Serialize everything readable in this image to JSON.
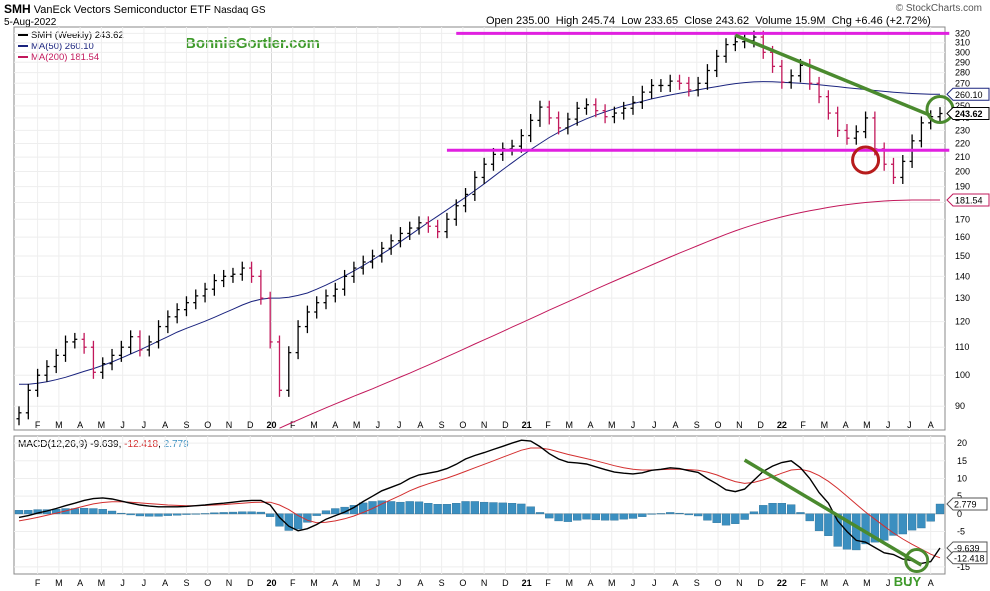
{
  "header": {
    "symbol": "SMH",
    "name": "VanEck Vectors Semiconductor ETF",
    "exchange": "Nasdaq GS",
    "date": "5-Aug-2022",
    "credit": "© StockCharts.com",
    "open_label": "Open",
    "open": "235.00",
    "high_label": "High",
    "high": "245.74",
    "low_label": "Low",
    "low": "233.65",
    "close_label": "Close",
    "close": "243.62",
    "volume_label": "Volume",
    "volume": "15.9M",
    "chg_label": "Chg",
    "chg": "+6.46 (+2.72%)",
    "watermark": "BonnieGortler.com"
  },
  "legend_price": [
    {
      "text": "SMH (Weekly) 243.62",
      "color": "#000000"
    },
    {
      "text": "MA(50) 260.10",
      "color": "#1a237e"
    },
    {
      "text": "MA(200) 181.54",
      "color": "#c2185b"
    }
  ],
  "legend_macd": {
    "label": "MACD(12,26,9)",
    "v1": "-9.639",
    "v2": "-12.418",
    "v3": "2.779",
    "c1": "#000000",
    "c2": "#d32f2f",
    "c3": "#3b8fc0"
  },
  "price_tags": [
    {
      "text": "260.10",
      "value": 260.1,
      "style": "ma50"
    },
    {
      "text": "243.62",
      "value": 243.62,
      "style": "close"
    },
    {
      "text": "181.54",
      "value": 181.54,
      "style": "ma200"
    }
  ],
  "macd_tags": [
    {
      "text": "2.779",
      "value": 2.779
    },
    {
      "text": "-9.639",
      "value": -9.639
    },
    {
      "text": "-12.418",
      "value": -12.418
    }
  ],
  "buy_label": "BUY",
  "chart_data": [
    {
      "type": "line",
      "title": "SMH (Weekly) 243.62",
      "xlabel": "",
      "ylabel": "",
      "y_scale": "log",
      "ylim": [
        83,
        327
      ],
      "yticks": [
        90,
        100,
        110,
        120,
        130,
        140,
        150,
        160,
        170,
        180,
        190,
        200,
        210,
        220,
        230,
        240,
        250,
        260,
        270,
        280,
        290,
        300,
        310,
        320
      ],
      "x_tick_labels": [
        "F",
        "M",
        "A",
        "M",
        "J",
        "J",
        "A",
        "S",
        "O",
        "N",
        "D",
        "20",
        "F",
        "M",
        "A",
        "M",
        "J",
        "J",
        "A",
        "S",
        "O",
        "N",
        "D",
        "21",
        "F",
        "M",
        "A",
        "M",
        "J",
        "J",
        "A",
        "S",
        "O",
        "N",
        "D",
        "22",
        "F",
        "M",
        "A",
        "M",
        "J",
        "J",
        "A"
      ],
      "bold_x_ticks": [
        "20",
        "21",
        "22"
      ],
      "grid": true,
      "legend_position": "top-left",
      "series": [
        {
          "name": "SMH (Weekly) 243.62",
          "color": "#000000",
          "down_color": "#c2185b",
          "values": [
            88,
            95,
            100,
            103,
            107,
            112,
            113,
            110,
            101,
            104,
            107,
            110,
            114,
            109,
            112,
            118,
            122,
            125,
            128,
            131,
            134,
            138,
            140,
            141,
            144,
            140,
            130,
            112,
            95,
            108,
            118,
            124,
            128,
            131,
            134,
            140,
            144,
            147,
            150,
            154,
            158,
            162,
            165,
            168,
            166,
            163,
            170,
            178,
            185,
            196,
            205,
            212,
            216,
            218,
            226,
            238,
            249,
            240,
            232,
            239,
            248,
            251,
            246,
            241,
            244,
            248,
            253,
            262,
            268,
            268,
            272,
            270,
            264,
            270,
            282,
            296,
            308,
            311,
            312,
            316,
            300,
            286,
            271,
            277,
            287,
            270,
            258,
            244,
            230,
            224,
            229,
            240,
            216,
            205,
            196,
            207,
            222,
            236,
            241,
            243.62
          ]
        },
        {
          "name": "MA(50) 260.10",
          "color": "#1a237e",
          "values": [
            97,
            97,
            97.3,
            97.8,
            98.5,
            99.3,
            100.3,
            101.3,
            102.3,
            103.4,
            104.6,
            106,
            107.5,
            109,
            110.6,
            112.3,
            114,
            115.8,
            117.3,
            118.7,
            120.2,
            121.8,
            123.5,
            125.2,
            127,
            128.5,
            129.5,
            130,
            130,
            130.4,
            131.2,
            132.3,
            134,
            135.9,
            138,
            140.2,
            142.6,
            145.2,
            148,
            151,
            154,
            157.5,
            161,
            164.6,
            168.2,
            171.8,
            175.5,
            179.3,
            183.2,
            187.4,
            191.8,
            196.5,
            201.3,
            206,
            210.8,
            215.5,
            220,
            224.5,
            228.5,
            232.3,
            236,
            239.3,
            242.2,
            245,
            247.6,
            250,
            252,
            254,
            256,
            257.8,
            259.5,
            261,
            262.5,
            264,
            265.6,
            267,
            268.4,
            269.7,
            270.6,
            271.3,
            271.6,
            271.5,
            271,
            270.5,
            270,
            269.4,
            268.6,
            267.8,
            267,
            266,
            265.2,
            264.4,
            263.5,
            262.7,
            261.9,
            261.3,
            260.8,
            260.4,
            260.2,
            260.1
          ]
        },
        {
          "name": "MA(200) 181.54",
          "color": "#c2185b",
          "values": [
            null,
            null,
            null,
            null,
            null,
            null,
            null,
            null,
            null,
            null,
            null,
            null,
            null,
            null,
            null,
            null,
            null,
            null,
            null,
            null,
            null,
            null,
            null,
            null,
            null,
            null,
            null,
            null,
            83.5,
            84.7,
            85.9,
            87.1,
            88.3,
            89.5,
            90.7,
            91.9,
            93.1,
            94.3,
            95.5,
            96.8,
            98.1,
            99.4,
            100.7,
            102.1,
            103.5,
            105,
            106.5,
            108,
            109.6,
            111.2,
            112.8,
            114.4,
            116.1,
            117.8,
            119.5,
            121.2,
            123,
            124.8,
            126.6,
            128.4,
            130.2,
            132.1,
            134,
            135.9,
            137.8,
            139.7,
            141.6,
            143.5,
            145.5,
            147.5,
            149.5,
            151.5,
            153.5,
            155.5,
            157.5,
            159.5,
            161.5,
            163.4,
            165.2,
            166.9,
            168.5,
            170,
            171.4,
            172.7,
            173.9,
            175,
            176,
            177,
            177.9,
            178.7,
            179.4,
            180,
            180.5,
            180.9,
            181.2,
            181.4,
            181.5,
            181.5,
            181.5,
            181.54
          ]
        }
      ],
      "annotations": [
        {
          "kind": "horizontal-line",
          "color": "#e020e0",
          "value": 320,
          "from_week": 47,
          "to_week": 100
        },
        {
          "kind": "horizontal-line",
          "color": "#e020e0",
          "value": 215,
          "from_week": 46,
          "to_week": 100
        },
        {
          "kind": "trendline",
          "color": "#4a8a2e",
          "from_week": 77,
          "from_value": 318,
          "to_week": 98,
          "to_value": 242
        },
        {
          "kind": "circle",
          "color": "#b71c1c",
          "week": 91,
          "value": 208
        },
        {
          "kind": "circle",
          "color": "#4a8a2e",
          "week": 99,
          "value": 247
        }
      ]
    },
    {
      "type": "line",
      "title": "MACD(12,26,9) -9.639, -12.418, 2.779",
      "xlabel": "",
      "ylabel": "",
      "ylim": [
        -17,
        22
      ],
      "yticks": [
        -15,
        -10,
        -5,
        0,
        5,
        10,
        15,
        20
      ],
      "grid": true,
      "legend_position": "top-left",
      "series": [
        {
          "name": "MACD(12,26,9) -9.639",
          "color": "#000000",
          "values": [
            -1,
            -0.5,
            0.2,
            0.8,
            1.5,
            2.3,
            3,
            3.8,
            4.3,
            4.5,
            4.2,
            3.6,
            3,
            2.5,
            2.2,
            2,
            2,
            2,
            2.1,
            2.3,
            2.5,
            2.8,
            3,
            3.3,
            3.6,
            3.8,
            3.8,
            2.5,
            -1,
            -3.5,
            -4.8,
            -4.2,
            -3,
            -1.5,
            -0.5,
            0.5,
            1.8,
            3.5,
            5,
            6.5,
            7.5,
            8.5,
            10,
            11,
            11.5,
            12,
            12.8,
            14,
            15.5,
            16.5,
            17.3,
            18.2,
            19.1,
            20,
            20.8,
            20.6,
            19,
            17,
            15.5,
            14.6,
            14.4,
            14.1,
            13.3,
            12.5,
            11.8,
            11.5,
            11.3,
            11.6,
            12.3,
            12.6,
            13,
            12.8,
            12.2,
            11.7,
            10,
            8.5,
            6.8,
            6.3,
            7,
            9.5,
            12,
            13.5,
            14.5,
            15,
            13,
            10,
            6,
            3,
            -2,
            -5,
            -7.5,
            -8,
            -9.5,
            -11,
            -11.5,
            -12.8,
            -13.2,
            -14,
            -13.5,
            -9.639
          ]
        },
        {
          "name": "-12.418",
          "color": "#d32f2f",
          "values": [
            -2,
            -1.5,
            -1,
            -0.4,
            0.2,
            0.8,
            1.5,
            2.2,
            2.8,
            3.2,
            3.4,
            3.4,
            3.3,
            3.1,
            2.9,
            2.7,
            2.5,
            2.4,
            2.3,
            2.3,
            2.4,
            2.5,
            2.6,
            2.8,
            3,
            3.2,
            3.3,
            3.3,
            2.5,
            1.2,
            -0.5,
            -1.8,
            -2.5,
            -2.4,
            -2,
            -1.4,
            -0.6,
            0.4,
            1.5,
            2.8,
            4,
            5.2,
            6.5,
            7.6,
            8.5,
            9.3,
            10.1,
            11,
            12,
            13,
            14,
            15,
            16,
            17,
            18,
            18.6,
            18.6,
            18.2,
            17.5,
            16.8,
            16.2,
            15.6,
            15,
            14.3,
            13.6,
            13,
            12.6,
            12.4,
            12.4,
            12.5,
            12.6,
            12.6,
            12.5,
            12.3,
            11.8,
            11,
            10,
            9.1,
            8.6,
            8.9,
            9.6,
            10.5,
            11.5,
            12.4,
            12.6,
            12,
            10.8,
            9.2,
            7.2,
            5,
            2.7,
            0.5,
            -1.5,
            -3.5,
            -5.4,
            -7.1,
            -8.6,
            -10,
            -11.4,
            -12.418
          ]
        },
        {
          "name": "2.779",
          "type": "bar",
          "color": "#3b8fc0",
          "values": [
            1,
            1,
            1.2,
            1.2,
            1.3,
            1.5,
            1.5,
            1.6,
            1.5,
            1.3,
            0.8,
            0.2,
            -0.3,
            -0.6,
            -0.7,
            -0.7,
            -0.5,
            -0.4,
            -0.2,
            0,
            0.1,
            0.3,
            0.4,
            0.5,
            0.6,
            0.6,
            0.5,
            -0.8,
            -3.5,
            -4.7,
            -4.3,
            -2.4,
            -0.5,
            0.9,
            1.5,
            1.9,
            2.4,
            3.1,
            3.5,
            3.7,
            3.5,
            3.3,
            3.5,
            3.4,
            3,
            2.7,
            2.7,
            3,
            3.5,
            3.5,
            3.3,
            3.2,
            3.1,
            3,
            2.8,
            2,
            0.4,
            -1.2,
            -2,
            -2.2,
            -1.8,
            -1.5,
            -1.7,
            -1.8,
            -1.8,
            -1.5,
            -1.3,
            -0.8,
            -0.1,
            0.1,
            0.4,
            0.2,
            -0.3,
            -0.6,
            -1.8,
            -2.5,
            -3.2,
            -2.8,
            -1.6,
            0.6,
            2.4,
            3,
            3,
            2.6,
            0.4,
            -2,
            -4.8,
            -6.2,
            -9.2,
            -10,
            -10.2,
            -8.5,
            -8,
            -7.5,
            -6.1,
            -5.7,
            -4.6,
            -4,
            -2.1,
            2.779
          ]
        }
      ]
    }
  ]
}
